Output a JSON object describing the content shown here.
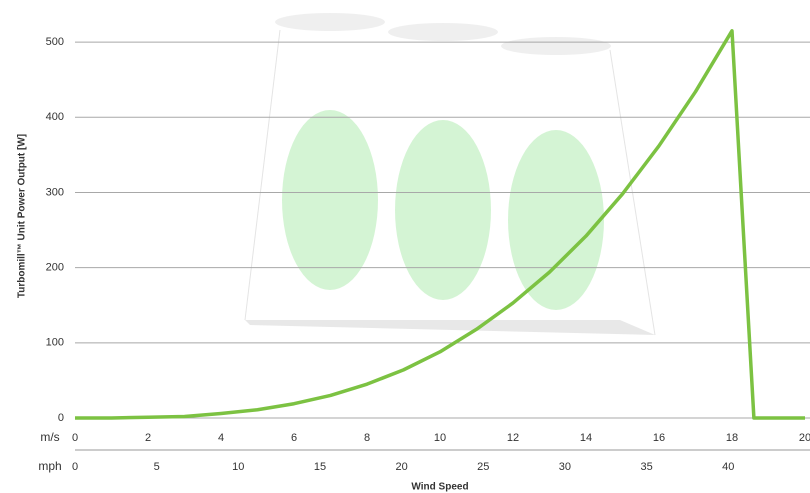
{
  "chart_data": {
    "type": "line",
    "y_label": "Turbomill™ Unit Power Output [W]",
    "x_label": "Wind Speed",
    "x_unit_label": "m/s",
    "x2_unit_label": "mph",
    "x": [
      0,
      1,
      2,
      3,
      4,
      5,
      6,
      7,
      8,
      9,
      10,
      11,
      12,
      13,
      14,
      15,
      16,
      17,
      18,
      18.6,
      20
    ],
    "series": [
      {
        "color": "#7cc242",
        "values": [
          0,
          0,
          1,
          2,
          6,
          11,
          19,
          30,
          45,
          64,
          88,
          118,
          153,
          194,
          242,
          298,
          362,
          434,
          515,
          0,
          0
        ]
      }
    ],
    "xlim": [
      0,
      20
    ],
    "xticks": [
      0,
      2,
      4,
      6,
      8,
      10,
      12,
      14,
      16,
      18,
      20
    ],
    "x2lim": [
      0,
      44.7
    ],
    "x2ticks": [
      0,
      5,
      10,
      15,
      20,
      25,
      30,
      35,
      40
    ],
    "ylim": [
      0,
      536
    ],
    "yticks": [
      0,
      100,
      200,
      300,
      400,
      500
    ],
    "grid": true
  }
}
